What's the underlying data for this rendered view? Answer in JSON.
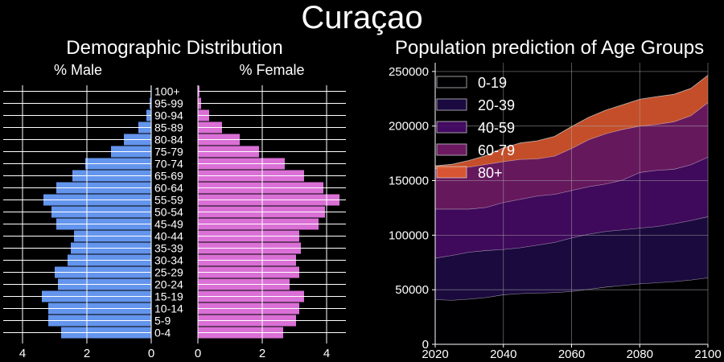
{
  "title": "Curaçao",
  "chart_data": [
    {
      "type": "bar",
      "orientation": "horizontal",
      "title": "Demographic Distribution",
      "male_label": "% Male",
      "female_label": "% Female",
      "categories": [
        "0-4",
        "5-9",
        "10-14",
        "15-19",
        "20-24",
        "25-29",
        "30-34",
        "35-39",
        "40-44",
        "45-49",
        "50-54",
        "55-59",
        "60-64",
        "65-69",
        "70-74",
        "75-79",
        "80-84",
        "85-89",
        "90-94",
        "95-99",
        "100+"
      ],
      "series": [
        {
          "name": "% Male",
          "values": [
            2.8,
            3.2,
            3.2,
            3.4,
            2.9,
            3.0,
            2.6,
            2.5,
            2.4,
            2.95,
            3.1,
            3.35,
            2.95,
            2.45,
            2.05,
            1.25,
            0.85,
            0.4,
            0.15,
            0.05,
            0.02
          ]
        },
        {
          "name": "% Female",
          "values": [
            2.65,
            3.05,
            3.15,
            3.3,
            2.85,
            3.15,
            3.05,
            3.2,
            3.15,
            3.75,
            3.95,
            4.4,
            3.9,
            3.3,
            2.7,
            1.9,
            1.3,
            0.75,
            0.35,
            0.1,
            0.05
          ]
        }
      ],
      "xticks": [
        "4",
        "2",
        "0",
        "0",
        "2",
        "4"
      ],
      "xlim": [
        0,
        4.6
      ],
      "colors": {
        "male": "#6495ED",
        "female": "#DA70D6"
      }
    },
    {
      "type": "area",
      "stacked": true,
      "title": "Population prediction of Age Groups",
      "x": [
        2020,
        2025,
        2030,
        2035,
        2040,
        2045,
        2050,
        2055,
        2060,
        2065,
        2070,
        2075,
        2080,
        2085,
        2090,
        2095,
        2100
      ],
      "xticks": [
        "2020",
        "2040",
        "2060",
        "2080",
        "2100"
      ],
      "yticks": [
        "0",
        "50000",
        "100000",
        "150000",
        "200000",
        "250000"
      ],
      "xlim": [
        2020,
        2100
      ],
      "ylim": [
        0,
        258000
      ],
      "grid": true,
      "legend": "top-left",
      "series": [
        {
          "name": "0-19",
          "color": "#000004",
          "values": [
            41000,
            40500,
            41500,
            43000,
            45500,
            46500,
            47000,
            47500,
            48500,
            50500,
            52500,
            54000,
            55500,
            56500,
            57500,
            59000,
            61000
          ]
        },
        {
          "name": "20-39",
          "color": "#1f0c48",
          "values": [
            38000,
            41000,
            43000,
            43000,
            41500,
            42000,
            44000,
            46000,
            49000,
            50500,
            51000,
            51000,
            51000,
            51500,
            53000,
            54500,
            56000
          ]
        },
        {
          "name": "40-59",
          "color": "#4a0c6b",
          "values": [
            45000,
            42500,
            39500,
            39500,
            43000,
            44500,
            45000,
            44000,
            43500,
            43500,
            43500,
            45500,
            51000,
            51500,
            50000,
            51000,
            54500
          ]
        },
        {
          "name": "60-79",
          "color": "#781c6d",
          "values": [
            37000,
            37500,
            38500,
            39500,
            37500,
            36500,
            34000,
            35000,
            38500,
            43000,
            46000,
            46500,
            42500,
            42000,
            43500,
            45000,
            50000
          ]
        },
        {
          "name": "80+",
          "color": "#e55c30",
          "values": [
            2500,
            3500,
            6000,
            8000,
            12500,
            15000,
            16500,
            18000,
            20000,
            20500,
            21500,
            22500,
            24500,
            25500,
            25000,
            25000,
            25000
          ]
        }
      ]
    }
  ]
}
